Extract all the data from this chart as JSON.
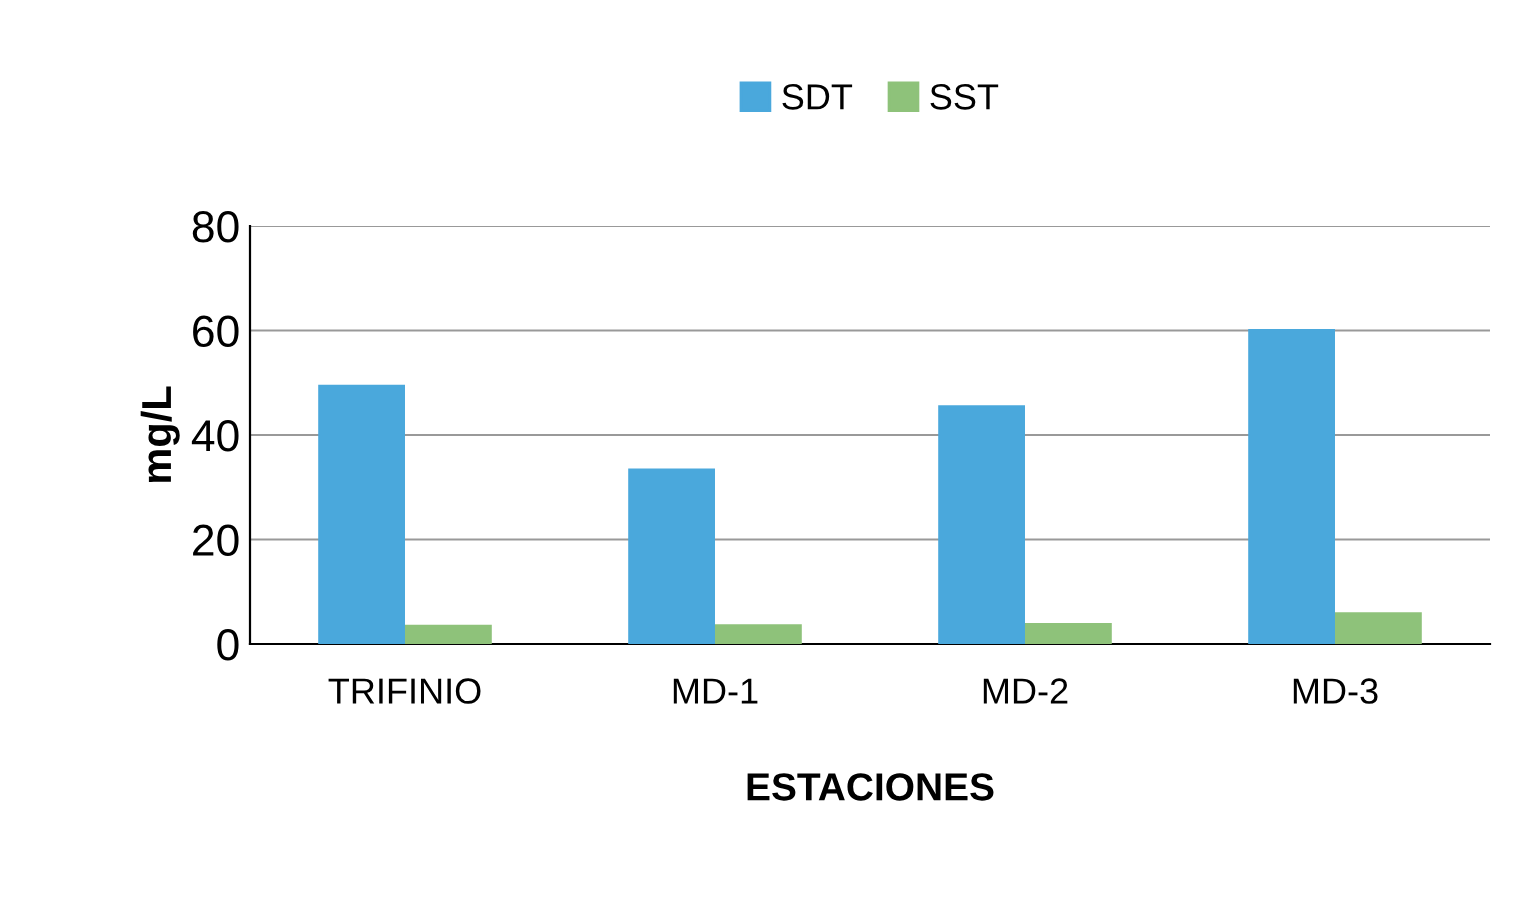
{
  "chart_data": {
    "type": "bar",
    "xlabel": "ESTACIONES",
    "ylabel": "mg/L",
    "categories": [
      "TRIFINIO",
      "MD-1",
      "MD-2",
      "MD-3"
    ],
    "series": [
      {
        "name": "SDT",
        "color": "#4aa8dc",
        "values": [
          49.6,
          33.6,
          45.7,
          60.3
        ]
      },
      {
        "name": "SST",
        "color": "#8ec27a",
        "values": [
          3.7,
          3.8,
          4.0,
          6.1
        ]
      }
    ],
    "ylim": [
      0,
      80
    ],
    "yticks": [
      0,
      20,
      40,
      60,
      80
    ],
    "grid": "y",
    "legend": "top"
  }
}
